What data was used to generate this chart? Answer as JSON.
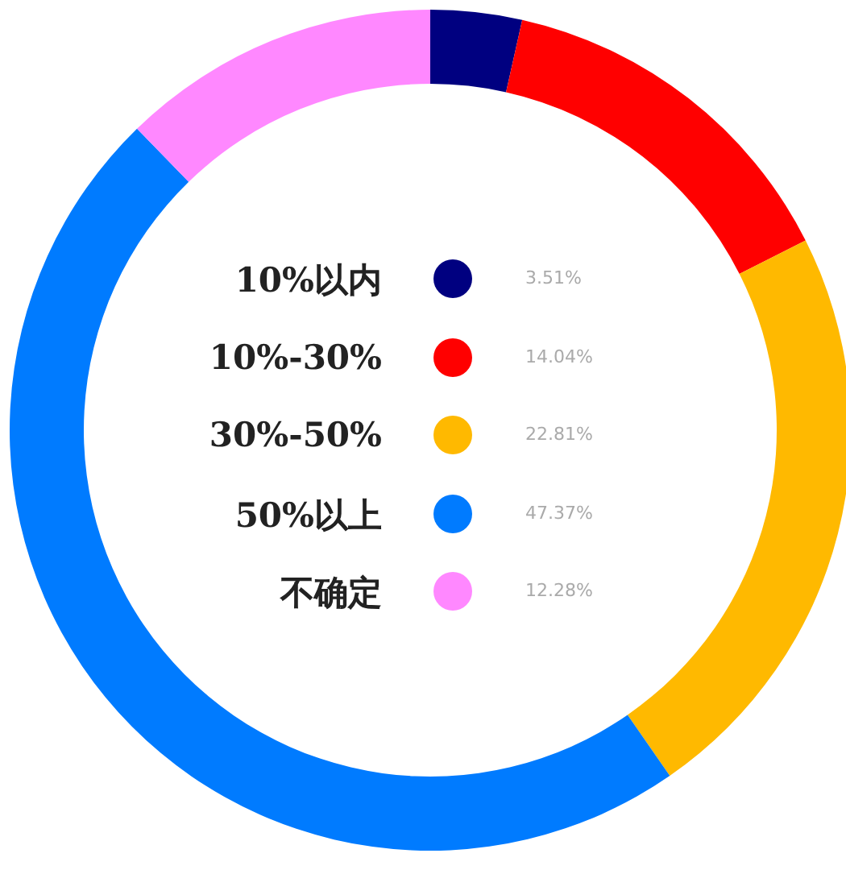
{
  "chart_data": {
    "type": "donut",
    "categories": [
      "10%以内",
      "10%-30%",
      "30%-50%",
      "50%以上",
      "不确定"
    ],
    "values": [
      3.51,
      14.04,
      22.81,
      47.37,
      12.28
    ],
    "colors": [
      "#000080",
      "#ff0000",
      "#ffb900",
      "#007bff",
      "#ff88ff"
    ],
    "value_labels": [
      "3.51%",
      "14.04%",
      "22.81%",
      "47.37%",
      "12.28%"
    ],
    "legend": "center"
  }
}
